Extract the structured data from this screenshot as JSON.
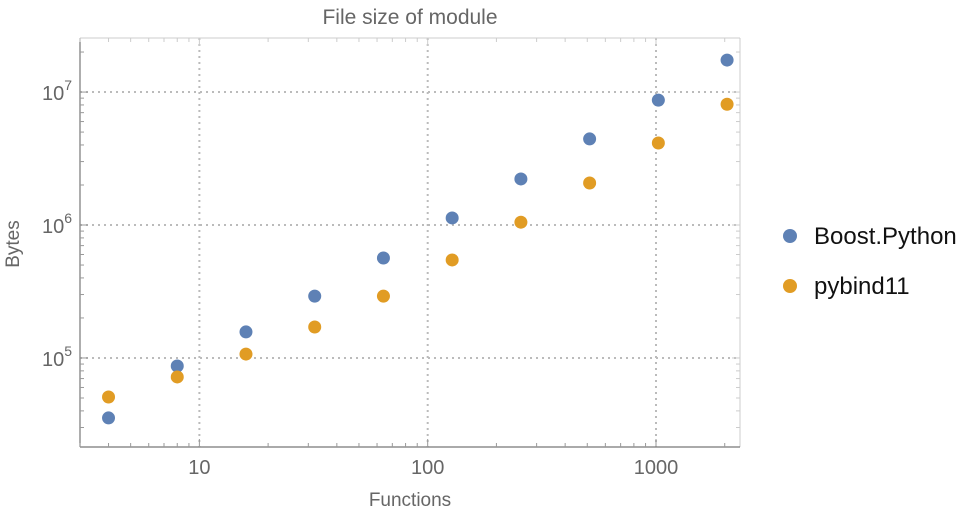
{
  "chart_data": {
    "type": "scatter",
    "title": "File size of module",
    "xlabel": "Functions",
    "ylabel": "Bytes",
    "xscale": "log",
    "yscale": "log",
    "xlim": [
      3.0,
      2333
    ],
    "ylim": [
      21400,
      25500000
    ],
    "grid": true,
    "legend_position": "right",
    "x_ticks": [
      {
        "value": 10,
        "label": "10"
      },
      {
        "value": 100,
        "label": "100"
      },
      {
        "value": 1000,
        "label": "1000"
      }
    ],
    "y_ticks": [
      {
        "value": 100000,
        "base": "10",
        "exp": "5"
      },
      {
        "value": 1000000,
        "base": "10",
        "exp": "6"
      },
      {
        "value": 10000000,
        "base": "10",
        "exp": "7"
      }
    ],
    "x": [
      4,
      8,
      16,
      32,
      64,
      128,
      256,
      512,
      1024,
      2048
    ],
    "series": [
      {
        "name": "Boost.Python",
        "color": "#5E81B5",
        "values": [
          35400,
          87000,
          157000,
          292000,
          565000,
          1130000,
          2220000,
          4440000,
          8700000,
          17400000
        ]
      },
      {
        "name": "pybind11",
        "color": "#E19C24",
        "values": [
          50900,
          72000,
          107000,
          171000,
          292000,
          546000,
          1050000,
          2070000,
          4140000,
          8100000
        ]
      }
    ]
  }
}
